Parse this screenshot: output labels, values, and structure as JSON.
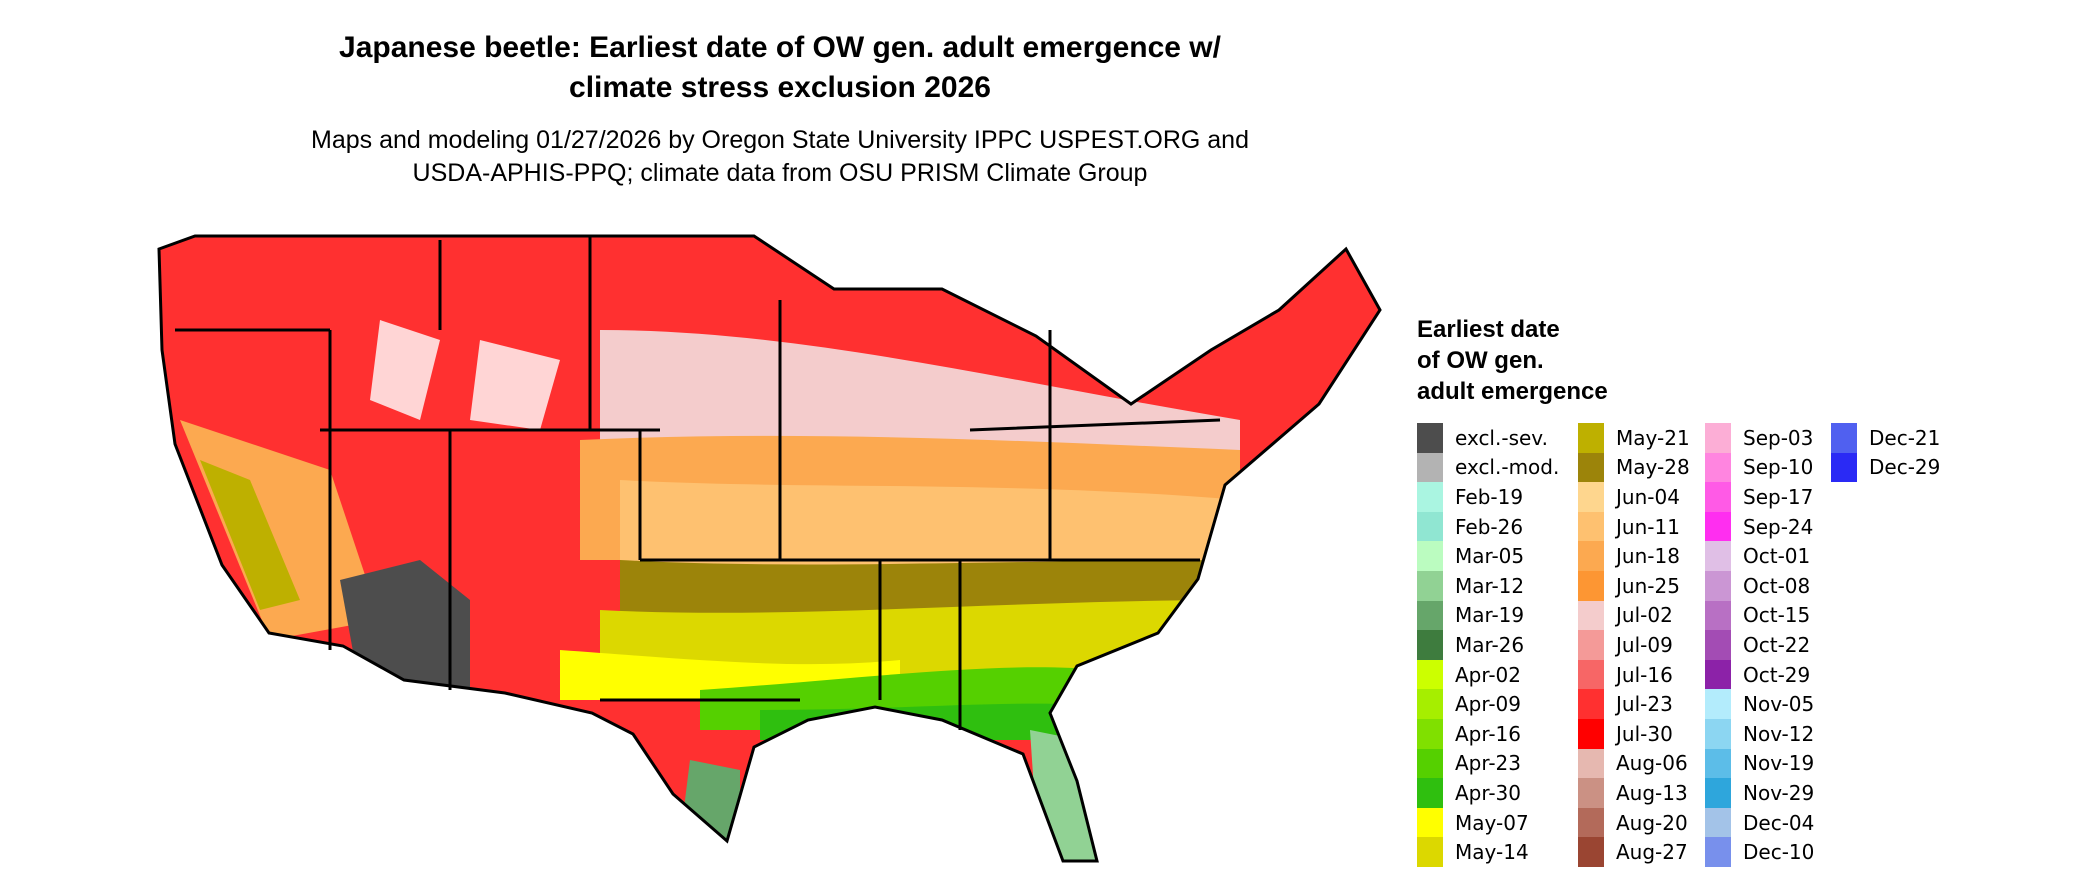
{
  "title": [
    "Japanese beetle: Earliest date of OW gen. adult emergence w/",
    "climate stress exclusion 2026"
  ],
  "subtitle": [
    "Maps and modeling 01/27/2026 by Oregon State University IPPC USPEST.ORG and",
    "USDA-APHIS-PPQ; climate data from OSU PRISM Climate Group"
  ],
  "legend": {
    "title": [
      "Earliest date",
      "of OW gen.",
      "adult emergence"
    ],
    "columns": [
      [
        {
          "label": "excl.-sev.",
          "color": "#4d4d4d"
        },
        {
          "label": "excl.-mod.",
          "color": "#b3b3b3"
        },
        {
          "label": "Feb-19",
          "color": "#aaf5e1"
        },
        {
          "label": "Feb-26",
          "color": "#90e6d2"
        },
        {
          "label": "Mar-05",
          "color": "#bbfcc0"
        },
        {
          "label": "Mar-12",
          "color": "#91d294"
        },
        {
          "label": "Mar-19",
          "color": "#66a66a"
        },
        {
          "label": "Mar-26",
          "color": "#3e7c3e"
        },
        {
          "label": "Apr-02",
          "color": "#ccff00"
        },
        {
          "label": "Apr-09",
          "color": "#a6ee00"
        },
        {
          "label": "Apr-16",
          "color": "#80e000"
        },
        {
          "label": "Apr-23",
          "color": "#55d000"
        },
        {
          "label": "Apr-30",
          "color": "#2fbf0f"
        },
        {
          "label": "May-07",
          "color": "#ffff00"
        },
        {
          "label": "May-14",
          "color": "#dcd800"
        }
      ],
      [
        {
          "label": "May-21",
          "color": "#beb000"
        },
        {
          "label": "May-28",
          "color": "#9c840a"
        },
        {
          "label": "Jun-04",
          "color": "#fed68e"
        },
        {
          "label": "Jun-11",
          "color": "#fec170"
        },
        {
          "label": "Jun-18",
          "color": "#fca950"
        },
        {
          "label": "Jun-25",
          "color": "#fd9633"
        },
        {
          "label": "Jul-02",
          "color": "#f4cccc"
        },
        {
          "label": "Jul-09",
          "color": "#f49a98"
        },
        {
          "label": "Jul-16",
          "color": "#f76666"
        },
        {
          "label": "Jul-23",
          "color": "#ff3030"
        },
        {
          "label": "Jul-30",
          "color": "#ff0000"
        },
        {
          "label": "Aug-06",
          "color": "#e6b8b0"
        },
        {
          "label": "Aug-13",
          "color": "#cb9184"
        },
        {
          "label": "Aug-20",
          "color": "#b36a5a"
        },
        {
          "label": "Aug-27",
          "color": "#9a4532"
        }
      ],
      [
        {
          "label": "Sep-03",
          "color": "#fcaed6"
        },
        {
          "label": "Sep-10",
          "color": "#ff85e0"
        },
        {
          "label": "Sep-17",
          "color": "#ff5ae6"
        },
        {
          "label": "Sep-24",
          "color": "#ff2ef0"
        },
        {
          "label": "Oct-01",
          "color": "#e0bfe6"
        },
        {
          "label": "Oct-08",
          "color": "#cb96d4"
        },
        {
          "label": "Oct-15",
          "color": "#b870c4"
        },
        {
          "label": "Oct-22",
          "color": "#a34cb4"
        },
        {
          "label": "Oct-29",
          "color": "#8c22a8"
        },
        {
          "label": "Nov-05",
          "color": "#b3ecfc"
        },
        {
          "label": "Nov-12",
          "color": "#8cd6f2"
        },
        {
          "label": "Nov-19",
          "color": "#5cbde8"
        },
        {
          "label": "Nov-29",
          "color": "#2ea6dc"
        },
        {
          "label": "Dec-04",
          "color": "#a3c3e8"
        },
        {
          "label": "Dec-10",
          "color": "#7890ec"
        }
      ],
      [
        {
          "label": "Dec-21",
          "color": "#5060f0"
        },
        {
          "label": "Dec-29",
          "color": "#2a2af5"
        }
      ]
    ]
  }
}
